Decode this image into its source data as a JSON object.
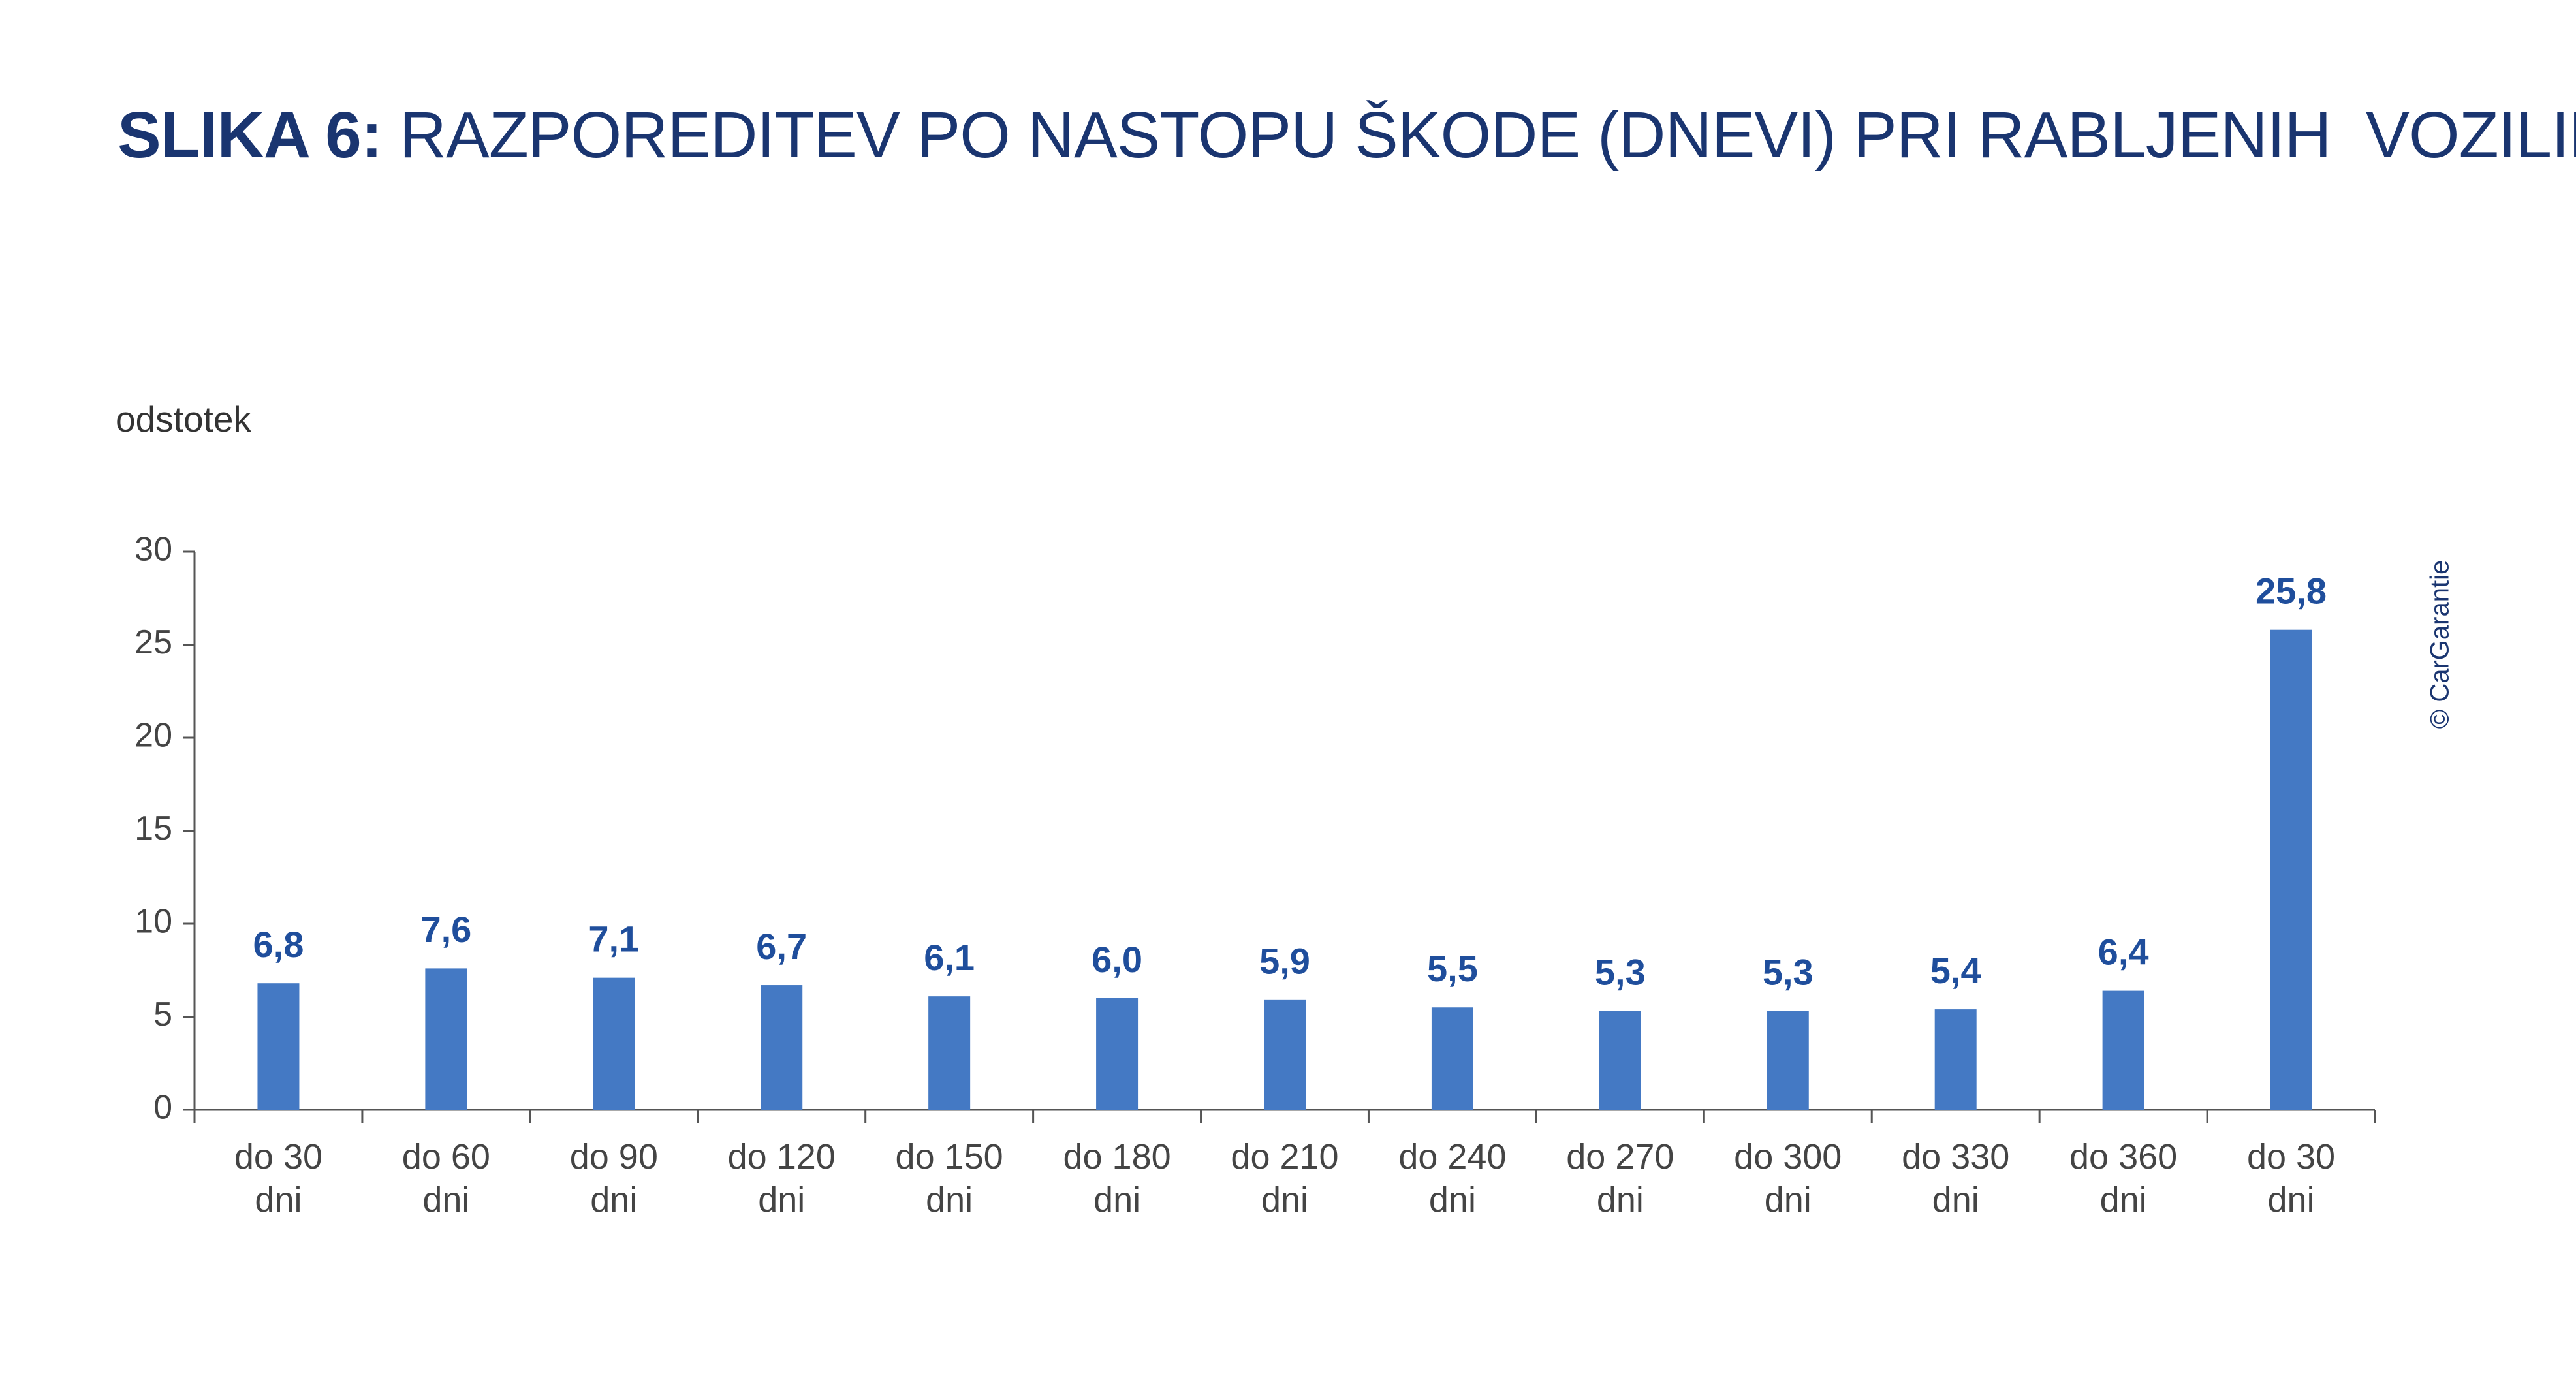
{
  "chart_data": {
    "type": "bar",
    "title_prefix": "SLIKA 6:",
    "title": "RAZPOREDITEV PO NASTOPU ŠKODE (DNEVI) PRI RABLJENIH  VOZILIH",
    "y_label": "odstotek",
    "credit": "© CarGarantie",
    "categories": [
      "do 30 dni",
      "do 60 dni",
      "do 90 dni",
      "do 120 dni",
      "do 150 dni",
      "do 180 dni",
      "do 210 dni",
      "do 240 dni",
      "do 270 dni",
      "do 300 dni",
      "do 330 dni",
      "do 360 dni",
      "do 30 dni"
    ],
    "values": [
      6.8,
      7.6,
      7.1,
      6.7,
      6.1,
      6.0,
      5.9,
      5.5,
      5.3,
      5.3,
      5.4,
      6.4,
      25.8
    ],
    "value_labels": [
      "6,8",
      "7,6",
      "7,1",
      "6,7",
      "6,1",
      "6,0",
      "5,9",
      "5,5",
      "5,3",
      "5,3",
      "5,4",
      "6,4",
      "25,8"
    ],
    "color": "#4479c4",
    "ylim": [
      0,
      30
    ],
    "yticks": [
      0,
      5,
      10,
      15,
      20,
      25,
      30
    ],
    "grid": false
  }
}
